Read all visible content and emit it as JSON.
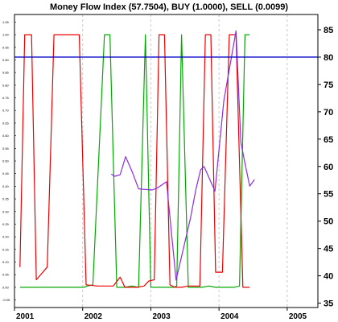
{
  "chart_data": {
    "type": "line",
    "title": "Money Flow Index (57.7504), BUY (1.0000), SELL (0.0099)",
    "x_ticks": [
      "2001",
      "2002",
      "2003",
      "2004",
      "2005"
    ],
    "x_range": [
      2001.0,
      2005.45
    ],
    "right_axis": {
      "ticks": [
        "85",
        "80",
        "75",
        "70",
        "65",
        "60",
        "55",
        "50",
        "45",
        "40",
        "35"
      ],
      "range": [
        34.2,
        87.8
      ]
    },
    "left_axis": {
      "ticks": [
        "1.05",
        "1.00",
        "0.95",
        "0.90",
        "0.85",
        "0.80",
        "0.75",
        "0.70",
        "0.65",
        "0.60",
        "0.55",
        "0.50",
        "0.45",
        "0.40",
        "0.35",
        "0.30",
        "0.25",
        "0.20",
        "0.15",
        "0.10",
        "0.05",
        "0.00",
        "-0.05"
      ],
      "range": [
        -0.08,
        1.08
      ]
    },
    "reference_line": {
      "value": 80,
      "color": "#0000cc"
    },
    "grid": true,
    "series": [
      {
        "id": "buy",
        "color": "#00aa00",
        "axis": "left",
        "x": [
          2001.08,
          2001.25,
          2001.6,
          2001.95,
          2002.02,
          2002.07,
          2002.15,
          2002.32,
          2002.4,
          2002.5,
          2002.62,
          2002.72,
          2002.82,
          2002.92,
          2003.0,
          2003.05,
          2003.15,
          2003.25,
          2003.33,
          2003.38,
          2003.45,
          2003.55,
          2003.65,
          2003.75,
          2003.85,
          2003.95,
          2004.1,
          2004.22,
          2004.3,
          2004.38,
          2004.45
        ],
        "y": [
          0.0,
          0.0,
          0.0,
          0.0,
          0.0,
          0.005,
          0.01,
          1.0,
          1.0,
          0.0,
          0.0,
          0.005,
          0.0,
          1.0,
          0.0,
          0.0,
          0.0,
          0.0,
          0.0,
          0.005,
          1.0,
          0.0,
          0.0,
          0.0,
          0.005,
          0.0,
          0.0,
          0.0,
          0.005,
          1.0,
          1.0
        ]
      },
      {
        "id": "sell",
        "color": "#ee0000",
        "axis": "left",
        "x": [
          2001.08,
          2001.15,
          2001.25,
          2001.32,
          2001.48,
          2001.58,
          2001.7,
          2001.82,
          2001.95,
          2002.05,
          2002.22,
          2002.35,
          2002.45,
          2002.55,
          2002.62,
          2002.7,
          2002.8,
          2002.9,
          2002.97,
          2003.05,
          2003.12,
          2003.2,
          2003.28,
          2003.35,
          2003.45,
          2003.55,
          2003.62,
          2003.72,
          2003.8,
          2003.88,
          2003.95,
          2004.05,
          2004.15,
          2004.25,
          2004.35,
          2004.45
        ],
        "y": [
          0.08,
          1.0,
          1.0,
          0.03,
          0.08,
          1.0,
          1.0,
          1.0,
          1.0,
          0.01,
          0.005,
          0.005,
          0.005,
          0.04,
          0.0,
          0.0,
          0.0,
          0.005,
          0.025,
          0.03,
          1.0,
          1.0,
          0.01,
          0.0,
          0.0,
          0.005,
          0.005,
          0.005,
          1.0,
          1.0,
          0.06,
          0.06,
          1.0,
          1.0,
          0.0,
          0.0
        ]
      },
      {
        "id": "mfi",
        "color": "#8a2be2",
        "axis": "right",
        "x": [
          2002.42,
          2002.47,
          2002.55,
          2002.63,
          2002.73,
          2002.82,
          2002.92,
          2003.02,
          2003.1,
          2003.23,
          2003.37,
          2003.58,
          2003.66,
          2003.73,
          2003.78,
          2003.94,
          2004.07,
          2004.25,
          2004.32,
          2004.39,
          2004.45,
          2004.52
        ],
        "y": [
          58.6,
          58.2,
          58.5,
          61.8,
          58.9,
          55.9,
          55.8,
          55.7,
          56.1,
          57.2,
          39.2,
          50.5,
          55.8,
          59.4,
          60.0,
          55.5,
          72.0,
          84.8,
          64.4,
          60.0,
          56.4,
          57.6
        ]
      }
    ]
  }
}
